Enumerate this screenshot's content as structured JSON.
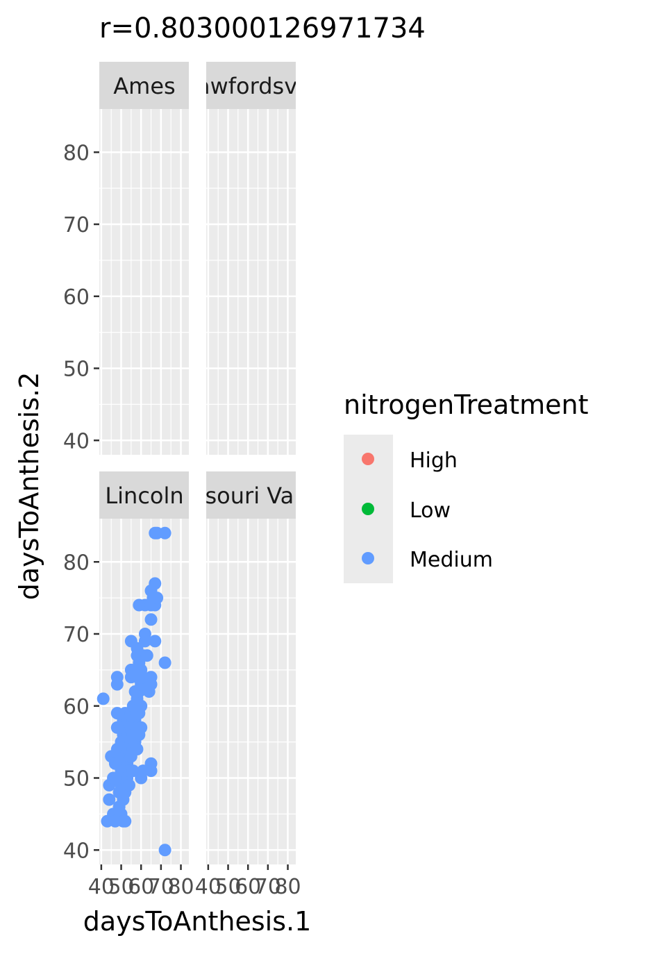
{
  "chart_data": {
    "type": "scatter",
    "title": "r=0.803000126971734",
    "xlabel": "daysToAnthesis.1",
    "ylabel": "daysToAnthesis.2",
    "xlim": [
      39,
      84
    ],
    "ylim": [
      38,
      86
    ],
    "x_ticks": [
      40,
      50,
      60,
      70,
      80
    ],
    "y_ticks": [
      40,
      50,
      60,
      70,
      80
    ],
    "x_tick_labels": [
      "40",
      "50",
      "60",
      "70",
      "80"
    ],
    "y_tick_labels": [
      "40",
      "50",
      "60",
      "70",
      "80"
    ],
    "grid": true,
    "facet_layout": [
      2,
      2
    ],
    "facets": [
      {
        "label": "Ames",
        "points": []
      },
      {
        "label": "Crawfordsville",
        "points": []
      },
      {
        "label": "Lincoln",
        "points": [
          [
            41,
            61
          ],
          [
            43,
            44
          ],
          [
            44,
            47
          ],
          [
            44,
            49
          ],
          [
            45,
            53
          ],
          [
            46,
            45
          ],
          [
            46,
            50
          ],
          [
            47,
            44
          ],
          [
            47,
            52
          ],
          [
            48,
            64
          ],
          [
            48,
            63
          ],
          [
            48,
            59
          ],
          [
            48,
            57
          ],
          [
            48,
            54
          ],
          [
            49,
            52
          ],
          [
            49,
            50
          ],
          [
            49,
            48
          ],
          [
            49,
            46
          ],
          [
            50,
            55
          ],
          [
            50,
            53
          ],
          [
            50,
            51
          ],
          [
            50,
            49
          ],
          [
            50,
            45
          ],
          [
            51,
            58
          ],
          [
            51,
            56
          ],
          [
            51,
            54
          ],
          [
            51,
            52
          ],
          [
            51,
            50
          ],
          [
            51,
            47
          ],
          [
            51,
            44
          ],
          [
            52,
            59
          ],
          [
            52,
            57
          ],
          [
            52,
            55
          ],
          [
            52,
            53
          ],
          [
            52,
            51
          ],
          [
            52,
            48
          ],
          [
            52,
            44
          ],
          [
            53,
            58
          ],
          [
            53,
            56
          ],
          [
            53,
            54
          ],
          [
            53,
            52
          ],
          [
            53,
            50
          ],
          [
            54,
            57
          ],
          [
            54,
            55
          ],
          [
            54,
            53
          ],
          [
            54,
            51
          ],
          [
            54,
            49
          ],
          [
            55,
            69
          ],
          [
            55,
            65
          ],
          [
            55,
            64
          ],
          [
            55,
            59
          ],
          [
            55,
            57
          ],
          [
            55,
            55
          ],
          [
            55,
            53
          ],
          [
            56,
            60
          ],
          [
            56,
            58
          ],
          [
            56,
            56
          ],
          [
            56,
            54
          ],
          [
            56,
            51
          ],
          [
            57,
            65
          ],
          [
            57,
            62
          ],
          [
            57,
            58
          ],
          [
            57,
            55
          ],
          [
            58,
            68
          ],
          [
            58,
            67
          ],
          [
            58,
            64
          ],
          [
            58,
            61
          ],
          [
            58,
            59
          ],
          [
            58,
            57
          ],
          [
            58,
            54
          ],
          [
            59,
            74
          ],
          [
            59,
            66
          ],
          [
            59,
            64
          ],
          [
            59,
            62
          ],
          [
            59,
            59
          ],
          [
            59,
            56
          ],
          [
            60,
            65
          ],
          [
            60,
            63
          ],
          [
            60,
            60
          ],
          [
            60,
            57
          ],
          [
            60,
            50
          ],
          [
            61,
            67
          ],
          [
            61,
            64
          ],
          [
            61,
            51
          ],
          [
            62,
            70
          ],
          [
            62,
            69
          ],
          [
            62,
            74
          ],
          [
            63,
            67
          ],
          [
            64,
            62
          ],
          [
            65,
            74
          ],
          [
            65,
            76
          ],
          [
            65,
            72
          ],
          [
            65,
            64
          ],
          [
            65,
            63
          ],
          [
            65,
            52
          ],
          [
            65,
            51
          ],
          [
            66,
            75
          ],
          [
            67,
            77
          ],
          [
            67,
            84
          ],
          [
            67,
            69
          ],
          [
            67,
            74
          ],
          [
            68,
            84
          ],
          [
            68,
            75
          ],
          [
            72,
            84
          ],
          [
            72,
            66
          ],
          [
            72,
            40
          ]
        ]
      },
      {
        "label": "Missouri Valley",
        "points": []
      }
    ],
    "series": [
      {
        "name": "High",
        "color": "#f8766d"
      },
      {
        "name": "Low",
        "color": "#00ba38"
      },
      {
        "name": "Medium",
        "color": "#619cff"
      }
    ],
    "legend": {
      "title": "nitrogenTreatment",
      "position": "right"
    }
  }
}
